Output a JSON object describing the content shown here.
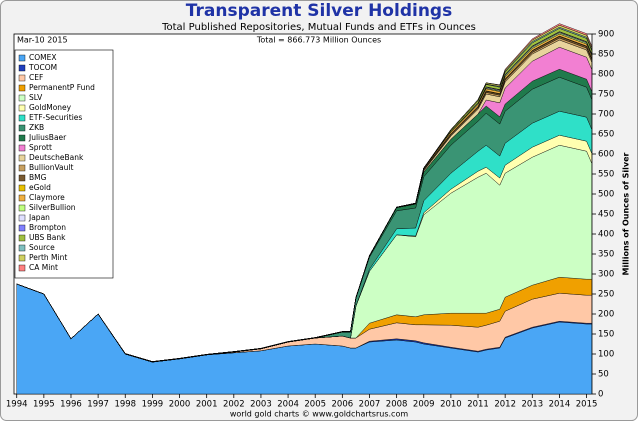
{
  "chart_data": {
    "type": "area",
    "stacked": true,
    "title": "Transparent Silver Holdings",
    "subtitle": "Total Published Repositories, Mutual Funds and ETFs in Ounces",
    "annotation": "Total = 866.773 Million Ounces",
    "date_label": "Mar-10 2015",
    "source": "world gold charts © www.goldchartsrus.com",
    "y_label": "Millions of Ounces of Silver",
    "grid": false,
    "legend": "upper left",
    "x": [
      1994,
      1995,
      1996,
      1997,
      1998,
      1999,
      2000,
      2001,
      2002,
      2003,
      2004,
      2005,
      2006,
      2006.3,
      2006.5,
      2007,
      2008,
      2008.7,
      2009,
      2010,
      2011,
      2011.3,
      2011.8,
      2012,
      2013,
      2014,
      2015,
      2015.19
    ],
    "xlim": [
      1993.9,
      2015.2
    ],
    "xticks": [
      1994,
      1995,
      1996,
      1997,
      1998,
      1999,
      2000,
      2001,
      2002,
      2003,
      2004,
      2005,
      2006,
      2007,
      2008,
      2009,
      2010,
      2011,
      2012,
      2013,
      2014,
      2015
    ],
    "ylim": [
      0,
      900
    ],
    "yticks": [
      0,
      50,
      100,
      150,
      200,
      250,
      300,
      350,
      400,
      450,
      500,
      550,
      600,
      650,
      700,
      750,
      800,
      850,
      900
    ],
    "series": [
      {
        "name": "COMEX",
        "color": "#4aa6f5",
        "values": [
          275,
          250,
          138,
          200,
          100,
          80,
          88,
          98,
          103,
          108,
          120,
          125,
          120,
          115,
          115,
          130,
          135,
          130,
          125,
          115,
          105,
          110,
          115,
          140,
          165,
          180,
          175,
          175
        ]
      },
      {
        "name": "TOCOM",
        "color": "#1f3fbf",
        "values": [
          0,
          0,
          0,
          0,
          0,
          0,
          0,
          0,
          0,
          0,
          0,
          0,
          0,
          0,
          0,
          2,
          3,
          3,
          3,
          2,
          2,
          2,
          2,
          2,
          2,
          2,
          2,
          2
        ]
      },
      {
        "name": "CEF",
        "color": "#ffc8a6",
        "values": [
          0,
          0,
          0,
          0,
          0,
          0,
          0,
          0,
          2,
          5,
          10,
          15,
          25,
          25,
          25,
          30,
          40,
          40,
          45,
          55,
          60,
          60,
          65,
          65,
          70,
          70,
          70,
          70
        ]
      },
      {
        "name": "PermanentP Fund",
        "color": "#f0a000",
        "values": [
          0,
          0,
          0,
          0,
          0,
          0,
          0,
          0,
          0,
          0,
          0,
          0,
          0,
          0,
          0,
          15,
          20,
          20,
          25,
          30,
          35,
          30,
          30,
          35,
          35,
          40,
          40,
          40
        ]
      },
      {
        "name": "SLV",
        "color": "#ccffc4",
        "values": [
          0,
          0,
          0,
          0,
          0,
          0,
          0,
          0,
          0,
          0,
          0,
          0,
          0,
          0,
          80,
          130,
          200,
          200,
          250,
          300,
          340,
          350,
          310,
          310,
          320,
          330,
          320,
          290
        ]
      },
      {
        "name": "GoldMoney",
        "color": "#ffffb0",
        "values": [
          0,
          0,
          0,
          0,
          0,
          0,
          0,
          0,
          0,
          0,
          0,
          0,
          0,
          0,
          0,
          0,
          0,
          2,
          5,
          10,
          15,
          15,
          18,
          20,
          25,
          25,
          25,
          25
        ]
      },
      {
        "name": "ETF-Securities",
        "color": "#2fe0c8",
        "values": [
          0,
          0,
          0,
          0,
          0,
          0,
          0,
          0,
          0,
          0,
          0,
          0,
          0,
          0,
          0,
          5,
          15,
          20,
          30,
          40,
          50,
          55,
          55,
          55,
          60,
          60,
          60,
          60
        ]
      },
      {
        "name": "ZKB",
        "color": "#3a9474",
        "values": [
          0,
          0,
          0,
          0,
          0,
          0,
          0,
          0,
          0,
          0,
          0,
          0,
          10,
          15,
          20,
          30,
          45,
          50,
          60,
          70,
          75,
          80,
          80,
          80,
          85,
          85,
          75,
          75
        ]
      },
      {
        "name": "JuliusBaer",
        "color": "#207a4c",
        "values": [
          0,
          0,
          0,
          0,
          0,
          0,
          0,
          0,
          0,
          0,
          0,
          0,
          0,
          0,
          0,
          3,
          8,
          10,
          12,
          15,
          18,
          18,
          18,
          18,
          20,
          20,
          20,
          20
        ]
      },
      {
        "name": "Sprott",
        "color": "#f27fd2",
        "values": [
          0,
          0,
          0,
          0,
          0,
          0,
          0,
          0,
          0,
          0,
          0,
          0,
          0,
          0,
          0,
          0,
          0,
          0,
          0,
          0,
          0,
          15,
          35,
          40,
          50,
          55,
          55,
          55
        ]
      },
      {
        "name": "DeutscheBank",
        "color": "#e8d49c",
        "values": [
          0,
          0,
          0,
          0,
          0,
          0,
          0,
          0,
          0,
          0,
          0,
          0,
          0,
          0,
          0,
          0,
          0,
          0,
          3,
          8,
          12,
          15,
          15,
          15,
          18,
          18,
          18,
          18
        ]
      },
      {
        "name": "BullionVault",
        "color": "#c8a060",
        "values": [
          0,
          0,
          0,
          0,
          0,
          0,
          0,
          0,
          0,
          0,
          0,
          0,
          0,
          0,
          0,
          0,
          0,
          1,
          2,
          2,
          3,
          4,
          4,
          4,
          4,
          5,
          5,
          5
        ]
      },
      {
        "name": "BMG",
        "color": "#7a5a30",
        "values": [
          0,
          0,
          0,
          0,
          0,
          0,
          0,
          0,
          0,
          0,
          0,
          0,
          0,
          0,
          0,
          0,
          0,
          0,
          2,
          3,
          3,
          3,
          3,
          3,
          4,
          4,
          4,
          4
        ]
      },
      {
        "name": "eGold",
        "color": "#e8c000",
        "values": [
          0,
          0,
          0,
          0,
          1,
          1,
          1,
          1,
          1,
          1,
          1,
          1,
          1,
          1,
          1,
          1,
          1,
          1,
          1,
          1,
          1,
          1,
          1,
          1,
          1,
          1,
          1,
          1
        ]
      },
      {
        "name": "Claymore",
        "color": "#f0b040",
        "values": [
          0,
          0,
          0,
          0,
          0,
          0,
          0,
          0,
          0,
          0,
          0,
          0,
          0,
          0,
          0,
          0,
          0,
          0,
          2,
          4,
          5,
          5,
          5,
          5,
          5,
          5,
          5,
          5
        ]
      },
      {
        "name": "SilverBullion",
        "color": "#c0ff80",
        "values": [
          0,
          0,
          0,
          0,
          0,
          0,
          0,
          0,
          0,
          0,
          0,
          0,
          0,
          0,
          0,
          0,
          0,
          0,
          0,
          1,
          2,
          2,
          2,
          3,
          3,
          3,
          3,
          3
        ]
      },
      {
        "name": "Japan",
        "color": "#e0e0ff",
        "values": [
          0,
          0,
          0,
          0,
          0,
          0,
          0,
          0,
          0,
          0,
          0,
          0,
          0,
          0,
          0,
          0,
          0,
          0,
          0,
          0,
          2,
          2,
          2,
          2,
          2,
          2,
          2,
          2
        ]
      },
      {
        "name": "Brompton",
        "color": "#8080ff",
        "values": [
          0,
          0,
          0,
          0,
          0,
          0,
          0,
          0,
          0,
          0,
          0,
          0,
          0,
          0,
          0,
          0,
          0,
          0,
          0,
          0,
          0,
          1,
          1,
          1,
          1,
          1,
          1,
          1
        ]
      },
      {
        "name": "UBS Bank",
        "color": "#a0c040",
        "values": [
          0,
          0,
          0,
          0,
          0,
          0,
          0,
          0,
          0,
          0,
          0,
          0,
          0,
          0,
          0,
          0,
          0,
          0,
          0,
          3,
          5,
          6,
          6,
          6,
          8,
          8,
          8,
          8
        ]
      },
      {
        "name": "Source",
        "color": "#80c0c0",
        "values": [
          0,
          0,
          0,
          0,
          0,
          0,
          0,
          0,
          0,
          0,
          0,
          0,
          0,
          0,
          0,
          0,
          0,
          0,
          0,
          0,
          0,
          1,
          2,
          2,
          3,
          3,
          3,
          3
        ]
      },
      {
        "name": "Perth Mint",
        "color": "#d0d060",
        "values": [
          0,
          0,
          0,
          0,
          0,
          0,
          0,
          0,
          0,
          0,
          0,
          0,
          0,
          0,
          0,
          0,
          0,
          0,
          0,
          2,
          3,
          3,
          3,
          3,
          4,
          5,
          5,
          5
        ]
      },
      {
        "name": "CA Mint",
        "color": "#ff8080",
        "values": [
          0,
          0,
          0,
          0,
          0,
          0,
          0,
          0,
          0,
          0,
          0,
          0,
          0,
          0,
          0,
          0,
          0,
          0,
          0,
          0,
          0,
          0,
          1,
          2,
          3,
          4,
          4,
          4
        ]
      }
    ]
  }
}
